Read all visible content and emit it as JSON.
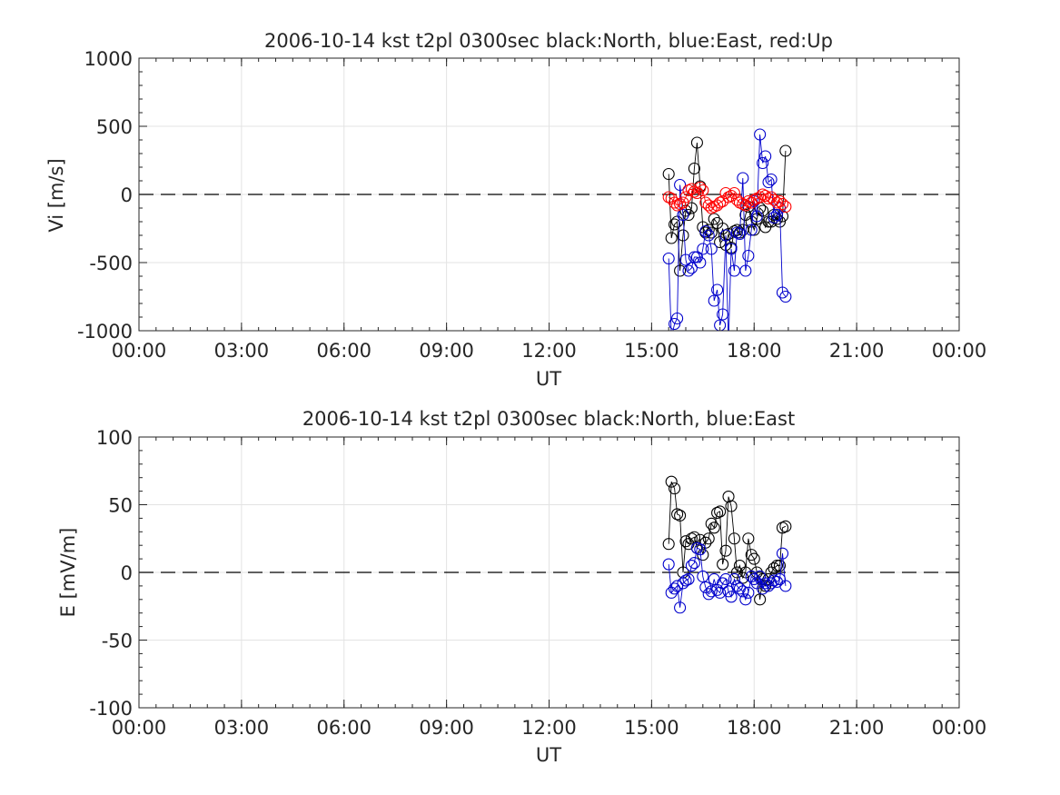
{
  "chart_data": [
    {
      "type": "line",
      "title": "2006-10-14 kst t2pl 0300sec black:North, blue:East, red:Up",
      "xlabel": "UT",
      "ylabel": "Vi [m/s]",
      "xlim": [
        0,
        24
      ],
      "ylim": [
        -1000,
        1000
      ],
      "xticklabels": [
        "00:00",
        "03:00",
        "06:00",
        "09:00",
        "12:00",
        "15:00",
        "18:00",
        "21:00",
        "00:00"
      ],
      "yticks": [
        -1000,
        -500,
        0,
        500,
        1000
      ],
      "yticklabels": [
        "-1000",
        "-500",
        "0",
        "500",
        "1000"
      ],
      "grid": true,
      "zero_line": "dashed",
      "series": [
        {
          "color": "#000000",
          "x": [
            15.5,
            15.58,
            15.67,
            15.75,
            15.83,
            15.92,
            16.0,
            16.08,
            16.17,
            16.25,
            16.33,
            16.42,
            16.5,
            16.58,
            16.67,
            16.75,
            16.83,
            16.92,
            17.0,
            17.08,
            17.17,
            17.25,
            17.33,
            17.42,
            17.5,
            17.58,
            17.67,
            17.75,
            17.83,
            17.92,
            18.0,
            18.08,
            18.17,
            18.25,
            18.33,
            18.42,
            18.5,
            18.58,
            18.67,
            18.75,
            18.83,
            18.92
          ],
          "y": [
            150,
            -320,
            -220,
            -200,
            -560,
            -300,
            -120,
            -150,
            -100,
            190,
            380,
            60,
            -240,
            -280,
            -260,
            -280,
            -180,
            -210,
            -350,
            -250,
            -370,
            -290,
            -390,
            -270,
            -260,
            -280,
            -260,
            -150,
            -90,
            -200,
            -260,
            -180,
            -100,
            -120,
            -240,
            -200,
            -200,
            -150,
            -180,
            -200,
            -160,
            320
          ]
        },
        {
          "color": "#0000cc",
          "x": [
            15.5,
            15.58,
            15.67,
            15.75,
            15.83,
            15.92,
            16.0,
            16.08,
            16.17,
            16.25,
            16.33,
            16.42,
            16.5,
            16.58,
            16.67,
            16.75,
            16.83,
            16.92,
            17.0,
            17.08,
            17.17,
            17.25,
            17.33,
            17.42,
            17.5,
            17.58,
            17.67,
            17.75,
            17.83,
            17.92,
            18.0,
            18.08,
            18.17,
            18.25,
            18.33,
            18.42,
            18.5,
            18.58,
            18.67,
            18.75,
            18.83,
            18.92
          ],
          "y": [
            -470,
            -1050,
            -950,
            -910,
            70,
            -150,
            -480,
            -560,
            -540,
            -460,
            -460,
            -500,
            -400,
            -270,
            -300,
            -400,
            -780,
            -700,
            -960,
            -880,
            -300,
            -1100,
            -400,
            -560,
            -280,
            -290,
            120,
            -560,
            -450,
            -260,
            -50,
            -160,
            440,
            230,
            280,
            90,
            110,
            -170,
            -150,
            -100,
            -720,
            -750
          ]
        },
        {
          "color": "#ff0000",
          "x": [
            15.5,
            15.58,
            15.67,
            15.75,
            15.83,
            15.92,
            16.0,
            16.08,
            16.17,
            16.25,
            16.33,
            16.42,
            16.5,
            16.58,
            16.67,
            16.75,
            16.83,
            16.92,
            17.0,
            17.08,
            17.17,
            17.25,
            17.33,
            17.42,
            17.5,
            17.58,
            17.67,
            17.75,
            17.83,
            17.92,
            18.0,
            18.08,
            18.17,
            18.25,
            18.33,
            18.42,
            18.5,
            18.58,
            18.67,
            18.75,
            18.83,
            18.92
          ],
          "y": [
            -20,
            -30,
            -60,
            -80,
            -70,
            -60,
            -20,
            30,
            40,
            20,
            10,
            50,
            30,
            -60,
            -80,
            -100,
            -90,
            -80,
            -60,
            -50,
            10,
            -20,
            -10,
            10,
            -40,
            -60,
            -70,
            -80,
            -50,
            -60,
            -40,
            -30,
            -20,
            0,
            -10,
            -30,
            -20,
            -40,
            -60,
            -50,
            -70,
            -90
          ]
        }
      ]
    },
    {
      "type": "line",
      "title": "2006-10-14 kst t2pl 0300sec black:North, blue:East",
      "xlabel": "UT",
      "ylabel": "E [mV/m]",
      "xlim": [
        0,
        24
      ],
      "ylim": [
        -100,
        100
      ],
      "xticklabels": [
        "00:00",
        "03:00",
        "06:00",
        "09:00",
        "12:00",
        "15:00",
        "18:00",
        "21:00",
        "00:00"
      ],
      "yticks": [
        -100,
        -50,
        0,
        50,
        100
      ],
      "yticklabels": [
        "-100",
        "-50",
        "0",
        "50",
        "100"
      ],
      "grid": true,
      "zero_line": "dashed",
      "series": [
        {
          "color": "#000000",
          "x": [
            15.5,
            15.58,
            15.67,
            15.75,
            15.83,
            15.92,
            16.0,
            16.08,
            16.17,
            16.25,
            16.33,
            16.42,
            16.5,
            16.58,
            16.67,
            16.75,
            16.83,
            16.92,
            17.0,
            17.08,
            17.17,
            17.25,
            17.33,
            17.42,
            17.5,
            17.58,
            17.67,
            17.75,
            17.83,
            17.92,
            18.0,
            18.08,
            18.17,
            18.25,
            18.33,
            18.42,
            18.5,
            18.58,
            18.67,
            18.75,
            18.83,
            18.92
          ],
          "y": [
            21,
            67,
            62,
            43,
            42,
            0,
            23,
            21,
            25,
            26,
            18,
            24,
            13,
            22,
            25,
            36,
            33,
            44,
            45,
            6,
            16,
            56,
            49,
            25,
            0,
            5,
            -4,
            0,
            25,
            13,
            10,
            0,
            -20,
            -5,
            -10,
            -5,
            0,
            3,
            5,
            5,
            33,
            34
          ]
        },
        {
          "color": "#0000cc",
          "x": [
            15.5,
            15.58,
            15.67,
            15.75,
            15.83,
            15.92,
            16.0,
            16.08,
            16.17,
            16.25,
            16.33,
            16.42,
            16.5,
            16.58,
            16.67,
            16.75,
            16.83,
            16.92,
            17.0,
            17.08,
            17.17,
            17.25,
            17.33,
            17.42,
            17.5,
            17.58,
            17.67,
            17.75,
            17.83,
            17.92,
            18.0,
            18.08,
            18.17,
            18.25,
            18.33,
            18.42,
            18.5,
            18.58,
            18.67,
            18.75,
            18.83,
            18.92
          ],
          "y": [
            6,
            -15,
            -12,
            -10,
            -26,
            -8,
            -6,
            -5,
            5,
            7,
            18,
            17,
            -3,
            -11,
            -16,
            -14,
            -5,
            -13,
            -15,
            -8,
            -5,
            -14,
            -18,
            -5,
            -10,
            -12,
            -14,
            -20,
            -15,
            -3,
            -5,
            -8,
            -3,
            -12,
            -8,
            -10,
            -8,
            -6,
            -7,
            -5,
            14,
            -10
          ]
        }
      ]
    }
  ]
}
